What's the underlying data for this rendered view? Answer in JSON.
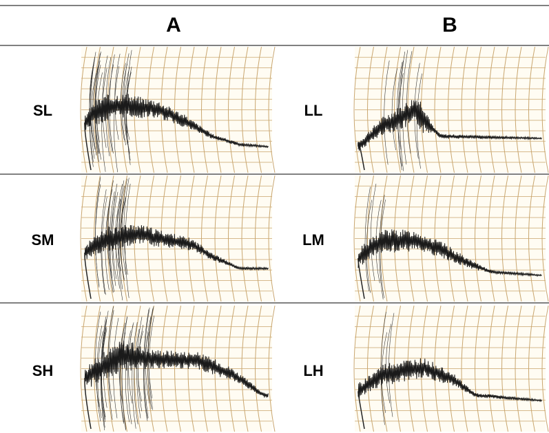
{
  "table": {
    "header": [
      "A",
      "B"
    ],
    "rows": [
      [
        "SL",
        "LL"
      ],
      [
        "SM",
        "LM"
      ],
      [
        "SH",
        "LH"
      ]
    ]
  }
}
